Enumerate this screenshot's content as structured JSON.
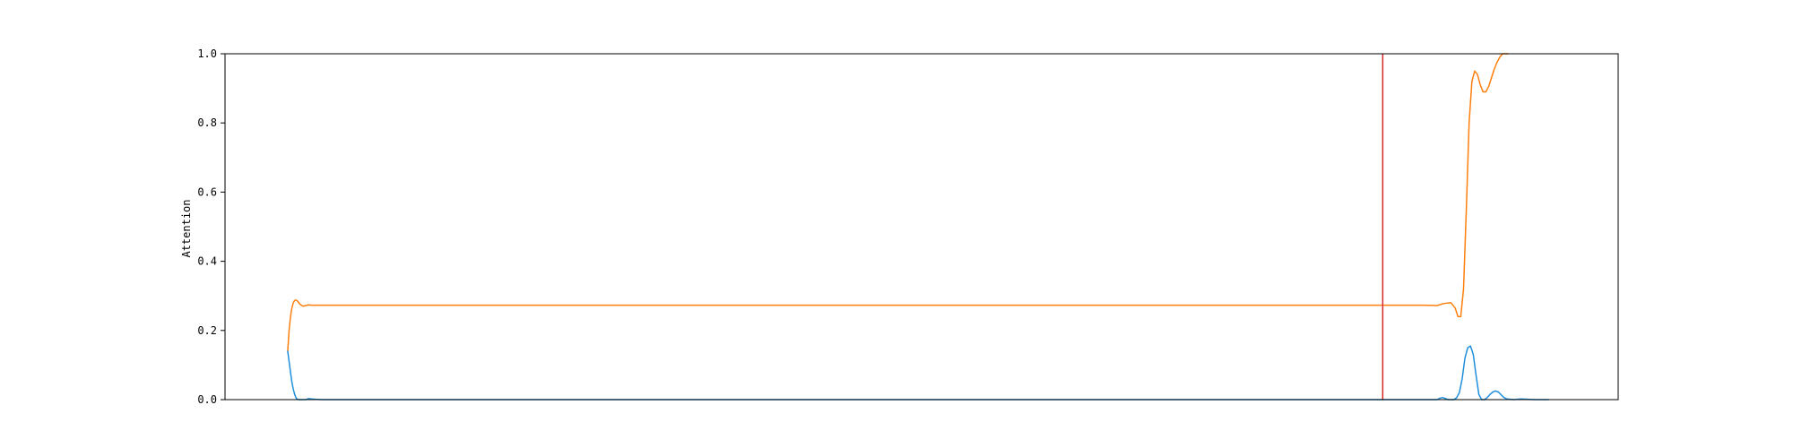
{
  "chart_data": {
    "type": "line",
    "title": "",
    "xlabel": "",
    "ylabel": "Attention",
    "xlim": [
      0,
      1000
    ],
    "ylim": [
      0,
      1.0
    ],
    "yticks": [
      0.0,
      0.2,
      0.4,
      0.6,
      0.8,
      1.0
    ],
    "ytick_labels": [
      "0.0",
      "0.2",
      "0.4",
      "0.6",
      "0.8",
      "1.0"
    ],
    "grid": false,
    "legend": "none",
    "vline": {
      "x": 831,
      "color": "#d62728"
    },
    "series": [
      {
        "color": "#ff7f0e",
        "x": [
          45,
          46,
          47,
          48,
          49,
          50,
          51,
          52,
          54,
          56,
          58,
          60,
          62,
          65,
          70,
          100,
          200,
          300,
          400,
          500,
          600,
          700,
          800,
          860,
          870,
          875,
          880,
          883,
          885,
          887,
          889,
          891,
          893,
          895,
          897,
          899,
          901,
          903,
          905,
          907,
          909,
          911,
          913,
          915,
          917,
          919,
          921
        ],
        "y": [
          0.14,
          0.2,
          0.24,
          0.265,
          0.28,
          0.287,
          0.288,
          0.285,
          0.275,
          0.27,
          0.272,
          0.274,
          0.273,
          0.273,
          0.273,
          0.273,
          0.273,
          0.273,
          0.273,
          0.273,
          0.273,
          0.273,
          0.273,
          0.273,
          0.272,
          0.278,
          0.28,
          0.265,
          0.24,
          0.24,
          0.32,
          0.55,
          0.8,
          0.92,
          0.95,
          0.94,
          0.91,
          0.89,
          0.89,
          0.905,
          0.93,
          0.955,
          0.975,
          0.99,
          1.0,
          1.0,
          1.0
        ]
      },
      {
        "color": "#1f8fdc",
        "x": [
          45,
          46,
          47,
          48,
          49,
          50,
          51,
          52,
          53,
          55,
          58,
          60,
          62,
          65,
          70,
          100,
          200,
          300,
          400,
          500,
          600,
          700,
          800,
          860,
          870,
          872,
          874,
          876,
          878,
          880,
          882,
          884,
          886,
          888,
          890,
          892,
          894,
          896,
          898,
          900,
          902,
          904,
          906,
          908,
          910,
          912,
          914,
          916,
          918,
          920,
          925,
          930,
          935,
          940,
          945,
          950
        ],
        "y": [
          0.14,
          0.11,
          0.08,
          0.05,
          0.03,
          0.015,
          0.005,
          0.001,
          0.0,
          0.0,
          0.0,
          0.003,
          0.002,
          0.001,
          0.0,
          0.0,
          0.0,
          0.0,
          0.0,
          0.0,
          0.0,
          0.0,
          0.0,
          0.0,
          0.0,
          0.004,
          0.006,
          0.003,
          0.0,
          0.0,
          0.0,
          0.005,
          0.02,
          0.06,
          0.12,
          0.15,
          0.155,
          0.13,
          0.07,
          0.015,
          0.0,
          0.0,
          0.006,
          0.015,
          0.022,
          0.025,
          0.022,
          0.014,
          0.006,
          0.002,
          0.0,
          0.002,
          0.001,
          0.0,
          0.0,
          0.0
        ]
      }
    ]
  }
}
